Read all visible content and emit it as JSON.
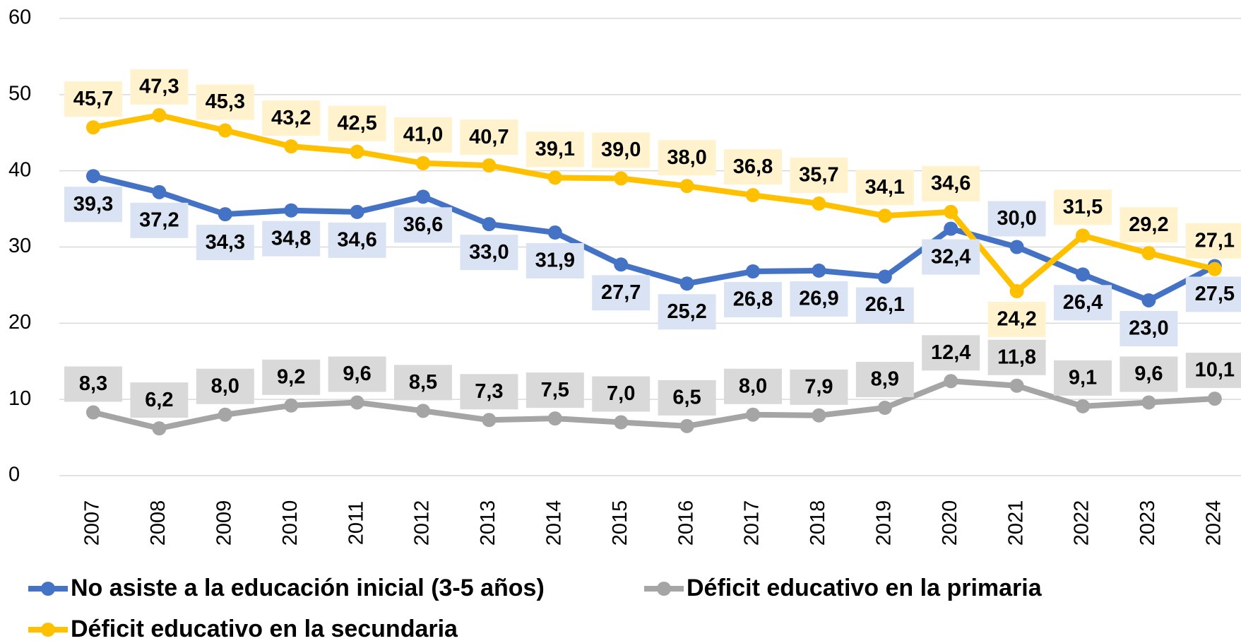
{
  "chart_data": {
    "type": "line",
    "categories": [
      "2007",
      "2008",
      "2009",
      "2010",
      "2011",
      "2012",
      "2013",
      "2014",
      "2015",
      "2016",
      "2017",
      "2018",
      "2019",
      "2020",
      "2021",
      "2022",
      "2023",
      "2024"
    ],
    "ylim": [
      0,
      60
    ],
    "yticks": [
      0,
      10,
      20,
      30,
      40,
      50,
      60
    ],
    "grid": true,
    "series": [
      {
        "name": "No asiste a la educación inicial (3-5 años)",
        "color": "#4472c4",
        "values": [
          39.3,
          37.2,
          34.3,
          34.8,
          34.6,
          36.6,
          33.0,
          31.9,
          27.7,
          25.2,
          26.8,
          26.9,
          26.1,
          32.4,
          30.0,
          26.4,
          23.0,
          27.5
        ],
        "value_labels": [
          "39,3",
          "37,2",
          "34,3",
          "34,8",
          "34,6",
          "36,6",
          "33,0",
          "31,9",
          "27,7",
          "25,2",
          "26,8",
          "26,9",
          "26,1",
          "32,4",
          "30,0",
          "26,4",
          "23,0",
          "27,5"
        ]
      },
      {
        "name": "Déficit educativo en la primaria",
        "color": "#a5a5a5",
        "values": [
          8.3,
          6.2,
          8.0,
          9.2,
          9.6,
          8.5,
          7.3,
          7.5,
          7.0,
          6.5,
          8.0,
          7.9,
          8.9,
          12.4,
          11.8,
          9.1,
          9.6,
          10.1
        ],
        "value_labels": [
          "8,3",
          "6,2",
          "8,0",
          "9,2",
          "9,6",
          "8,5",
          "7,3",
          "7,5",
          "7,0",
          "6,5",
          "8,0",
          "7,9",
          "8,9",
          "12,4",
          "11,8",
          "9,1",
          "9,6",
          "10,1"
        ]
      },
      {
        "name": "Déficit educativo en la secundaria",
        "color": "#ffc000",
        "values": [
          45.7,
          47.3,
          45.3,
          43.2,
          42.5,
          41.0,
          40.7,
          39.1,
          39.0,
          38.0,
          36.8,
          35.7,
          34.1,
          34.6,
          24.2,
          31.5,
          29.2,
          27.1
        ],
        "value_labels": [
          "45,7",
          "47,3",
          "45,3",
          "43,2",
          "42,5",
          "41,0",
          "40,7",
          "39,1",
          "39,0",
          "38,0",
          "36,8",
          "35,7",
          "34,1",
          "34,6",
          "24,2",
          "31,5",
          "29,2",
          "27,1"
        ]
      }
    ]
  }
}
